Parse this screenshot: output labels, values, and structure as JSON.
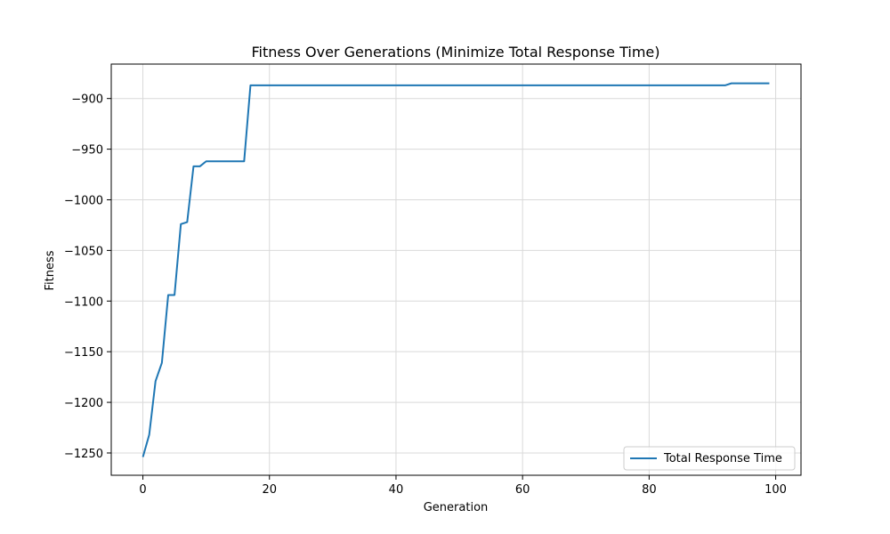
{
  "chart_data": {
    "type": "line",
    "title": "Fitness Over Generations (Minimize Total Response Time)",
    "xlabel": "Generation",
    "ylabel": "Fitness",
    "xlim": [
      -5,
      104
    ],
    "ylim": [
      -1272,
      -866
    ],
    "xticks": [
      0,
      20,
      40,
      60,
      80,
      100
    ],
    "yticks": [
      -1250,
      -1200,
      -1150,
      -1100,
      -1050,
      -1000,
      -950,
      -900
    ],
    "grid": true,
    "legend_position": "lower-right",
    "colors": {
      "series": "#1f77b4",
      "grid": "#d9d9d9",
      "axes": "#000000"
    },
    "series": [
      {
        "name": "Total Response Time",
        "points": [
          [
            0,
            -1254
          ],
          [
            1,
            -1232
          ],
          [
            2,
            -1179
          ],
          [
            3,
            -1161
          ],
          [
            4,
            -1094
          ],
          [
            5,
            -1094
          ],
          [
            6,
            -1024
          ],
          [
            7,
            -1022
          ],
          [
            8,
            -967
          ],
          [
            9,
            -967
          ],
          [
            10,
            -962
          ],
          [
            16,
            -962
          ],
          [
            17,
            -887
          ],
          [
            92,
            -887
          ],
          [
            93,
            -885
          ],
          [
            99,
            -885
          ]
        ]
      }
    ]
  }
}
